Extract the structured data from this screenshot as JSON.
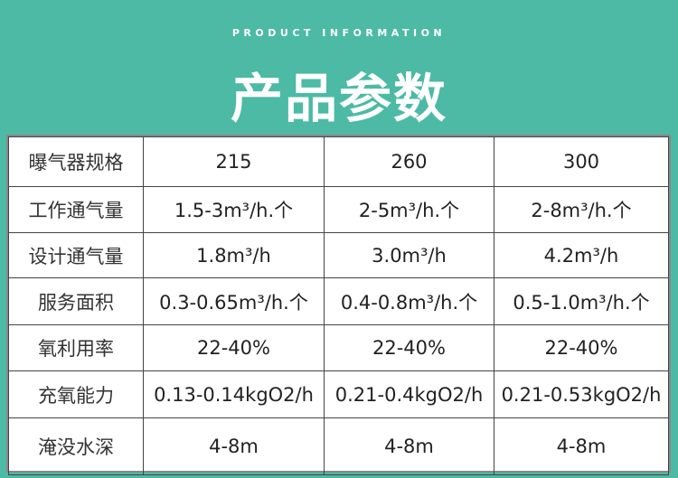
{
  "header": {
    "subtitle": "PRODUCT INFORMATION",
    "title": "产品参数"
  },
  "table": {
    "rows": [
      {
        "label": "曝气器规格",
        "values": [
          "215",
          "260",
          "300"
        ]
      },
      {
        "label": "工作通气量",
        "values": [
          "1.5-3m³/h.个",
          "2-5m³/h.个",
          "2-8m³/h.个"
        ]
      },
      {
        "label": "设计通气量",
        "values": [
          "1.8m³/h",
          "3.0m³/h",
          "4.2m³/h"
        ]
      },
      {
        "label": "服务面积",
        "values": [
          "0.3-0.65m³/h.个",
          "0.4-0.8m³/h.个",
          "0.5-1.0m³/h.个"
        ]
      },
      {
        "label": "氧利用率",
        "values": [
          "22-40%",
          "22-40%",
          "22-40%"
        ]
      },
      {
        "label": "充氧能力",
        "values": [
          "0.13-0.14kgO2/h",
          "0.21-0.4kgO2/h",
          "0.21-0.53kgO2/h"
        ]
      },
      {
        "label": "淹没水深",
        "values": [
          "4-8m",
          "4-8m",
          "4-8m"
        ]
      }
    ]
  },
  "colors": {
    "background": "#4cbaa5"
  }
}
